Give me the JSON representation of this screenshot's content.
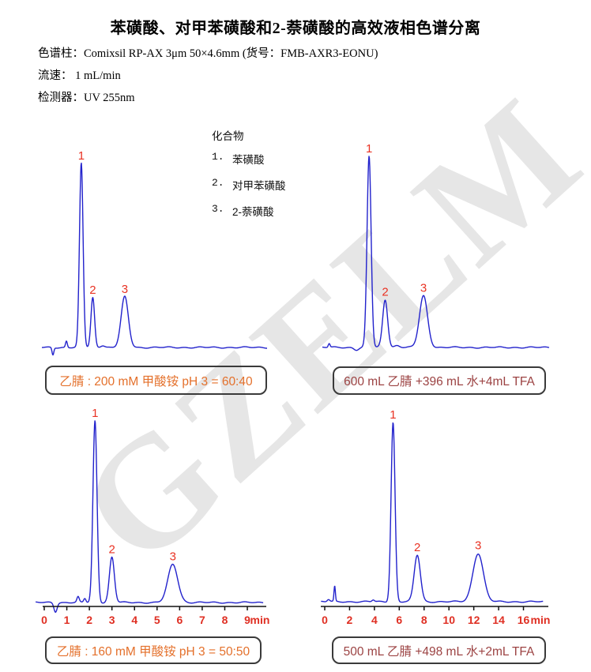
{
  "page": {
    "title": "苯磺酸、对甲苯磺酸和2-萘磺酸的高效液相色谱分离",
    "watermark": "GZELM"
  },
  "info": {
    "lines": [
      "色谱柱：Comixsil RP-AX 3μm 50×4.6mm (货号：FMB-AXR3-EONU)",
      "流速：  1 mL/min",
      "检测器：UV 255nm"
    ]
  },
  "legend": {
    "title": "化合物",
    "items": [
      {
        "num": "1.",
        "name": "苯磺酸"
      },
      {
        "num": "2.",
        "name": "对甲苯磺酸"
      },
      {
        "num": "3.",
        "name": "2-萘磺酸"
      }
    ]
  },
  "captions": {
    "tl": "乙腈 : 200 mM 甲酸铵 pH 3 = 60:40",
    "tr": "600 mL 乙腈 +396 mL 水+4mL TFA",
    "bl": "乙腈 : 160 mM 甲酸铵 pH 3 = 50:50",
    "br": "500 mL 乙腈 +498 mL 水+2mL TFA"
  },
  "colors": {
    "trace": "#2222cc",
    "peak_label": "#e93223",
    "axis_label": "#df2f23",
    "axis_line": "#111111",
    "caption_left": "#e4702b",
    "caption_right": "#9c4343",
    "watermark": "#e6e6e6"
  },
  "chart_data": [
    {
      "id": "tl",
      "type": "line",
      "description": "HPLC chromatogram, mobile phase ACN : 200 mM ammonium formate pH 3 = 60:40, no time axis shown",
      "x_unit": "fraction_of_trace",
      "x_axis": null,
      "peaks": [
        {
          "label": "1",
          "t": 0.175,
          "rel_height": 1.0,
          "sigma": 0.008
        },
        {
          "label": "2",
          "t": 0.226,
          "rel_height": 0.27,
          "sigma": 0.008
        },
        {
          "label": "3",
          "t": 0.368,
          "rel_height": 0.275,
          "sigma": 0.016
        }
      ],
      "artifacts": [
        {
          "t": 0.049,
          "rel_height": -0.04,
          "sigma": 0.004
        },
        {
          "t": 0.109,
          "rel_height": 0.035,
          "sigma": 0.004
        },
        {
          "t": 0.27,
          "rel_height": 0.012,
          "sigma": 0.01
        }
      ]
    },
    {
      "id": "tr",
      "type": "line",
      "description": "HPLC chromatogram, mobile phase 600 mL ACN + 396 mL water + 4 mL TFA, no time axis shown",
      "x_unit": "fraction_of_trace",
      "x_axis": null,
      "peaks": [
        {
          "label": "1",
          "t": 0.206,
          "rel_height": 1.0,
          "sigma": 0.009
        },
        {
          "label": "2",
          "t": 0.277,
          "rel_height": 0.25,
          "sigma": 0.011
        },
        {
          "label": "3",
          "t": 0.446,
          "rel_height": 0.27,
          "sigma": 0.018
        }
      ],
      "artifacts": [
        {
          "t": 0.03,
          "rel_height": 0.02,
          "sigma": 0.004
        },
        {
          "t": 0.15,
          "rel_height": -0.012,
          "sigma": 0.01
        },
        {
          "t": 0.33,
          "rel_height": 0.01,
          "sigma": 0.012
        }
      ]
    },
    {
      "id": "bl",
      "type": "line",
      "description": "HPLC chromatogram, mobile phase ACN : 160 mM ammonium formate pH 3 = 50:50",
      "x_unit": "min",
      "x_axis": {
        "unit": "min",
        "label": "min",
        "ticks": [
          0,
          1,
          2,
          3,
          4,
          5,
          6,
          7,
          8,
          9
        ],
        "range": [
          0,
          9.8
        ]
      },
      "peaks": [
        {
          "label": "1",
          "t": 2.25,
          "rel_height": 1.0,
          "sigma": 0.09
        },
        {
          "label": "2",
          "t": 3.0,
          "rel_height": 0.25,
          "sigma": 0.11
        },
        {
          "label": "3",
          "t": 5.7,
          "rel_height": 0.21,
          "sigma": 0.22
        }
      ],
      "artifacts": [
        {
          "t": 0.5,
          "rel_height": -0.05,
          "sigma": 0.07
        },
        {
          "t": 1.5,
          "rel_height": 0.03,
          "sigma": 0.05
        },
        {
          "t": 1.8,
          "rel_height": 0.022,
          "sigma": 0.05
        }
      ]
    },
    {
      "id": "br",
      "type": "line",
      "description": "HPLC chromatogram, mobile phase 500 mL ACN + 498 mL water + 2 mL TFA",
      "x_unit": "min",
      "x_axis": {
        "unit": "min",
        "label": "min",
        "ticks": [
          0,
          2,
          4,
          6,
          8,
          10,
          12,
          14,
          16
        ],
        "range": [
          0,
          17.6
        ]
      },
      "peaks": [
        {
          "label": "1",
          "t": 5.5,
          "rel_height": 1.0,
          "sigma": 0.16
        },
        {
          "label": "2",
          "t": 7.45,
          "rel_height": 0.26,
          "sigma": 0.25
        },
        {
          "label": "3",
          "t": 12.35,
          "rel_height": 0.27,
          "sigma": 0.42
        }
      ],
      "artifacts": [
        {
          "t": 0.8,
          "rel_height": 0.085,
          "sigma": 0.055
        },
        {
          "t": 0.3,
          "rel_height": 0.012,
          "sigma": 0.1
        },
        {
          "t": 3.9,
          "rel_height": 0.01,
          "sigma": 0.1
        }
      ]
    }
  ]
}
